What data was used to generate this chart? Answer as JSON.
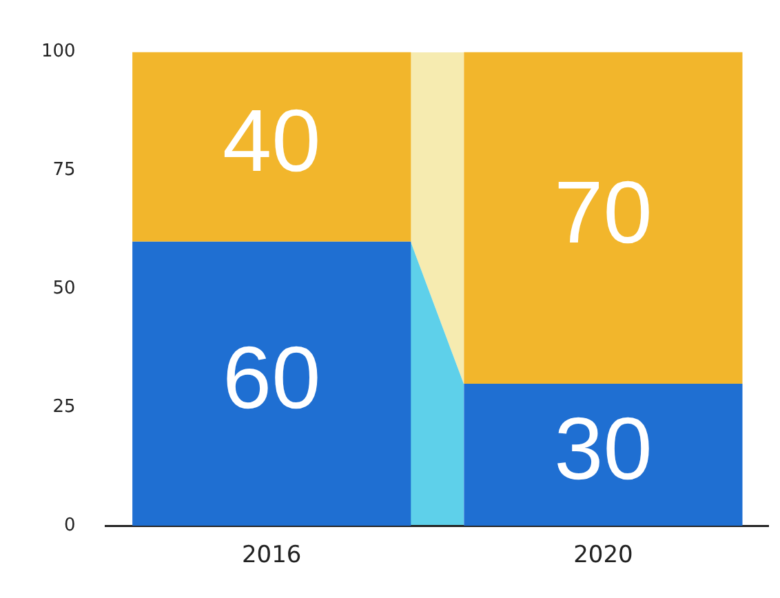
{
  "chart_data": {
    "type": "bar",
    "categories": [
      "2016",
      "2020"
    ],
    "stacked": true,
    "series": [
      {
        "color": "#1f6fd2",
        "values": [
          60,
          30
        ]
      },
      {
        "color": "#f2b62c",
        "values": [
          40,
          70
        ]
      }
    ],
    "ylim": [
      0,
      100
    ],
    "yticks": [
      0,
      25,
      50,
      75,
      100
    ],
    "data_labels": true,
    "grid": false,
    "legend": false
  }
}
